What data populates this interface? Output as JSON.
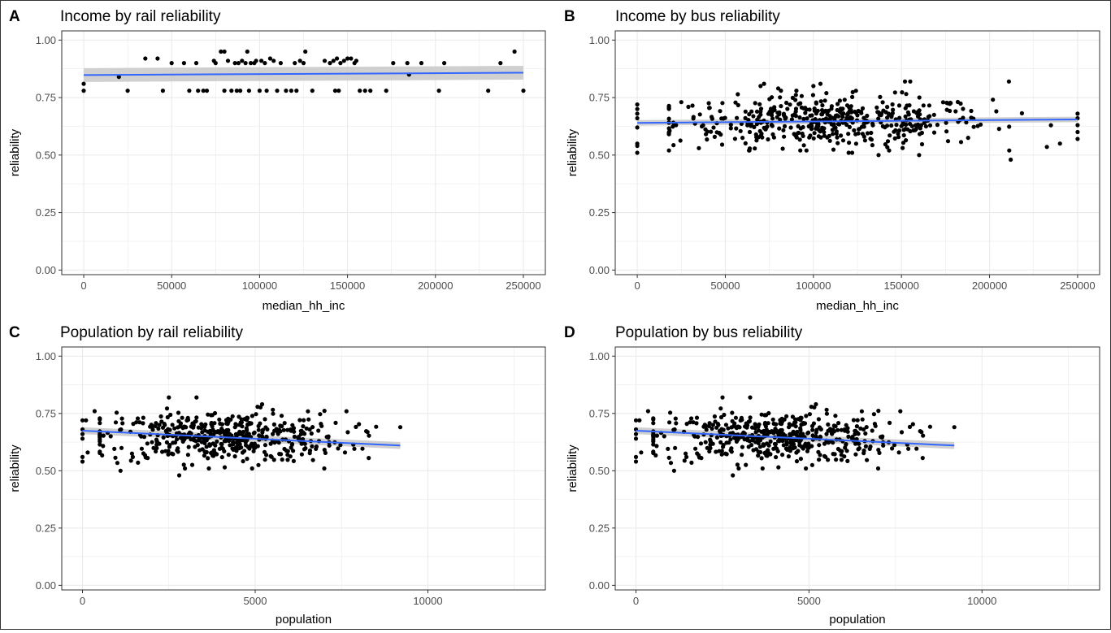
{
  "figure": {
    "colors": {
      "point": "#000000",
      "line": "#3366FF",
      "ribbon": "#C8C8C8",
      "grid": "#EBEBEB",
      "panel_border": "#333333"
    },
    "panels": [
      {
        "tag": "A",
        "title": "Income by rail reliability"
      },
      {
        "tag": "B",
        "title": "Income by bus reliability"
      },
      {
        "tag": "C",
        "title": "Population by rail reliability"
      },
      {
        "tag": "D",
        "title": "Population by bus reliability"
      }
    ]
  },
  "chart_data": [
    {
      "type": "scatter",
      "title": "Income by rail reliability",
      "xlabel": "median_hh_inc",
      "ylabel": "reliability",
      "xlim": [
        -12500,
        262500
      ],
      "ylim": [
        -0.02,
        1.04
      ],
      "x_ticks": [
        0,
        50000,
        100000,
        150000,
        200000,
        250000
      ],
      "x_tick_labels": [
        "0",
        "50000",
        "100000",
        "150000",
        "200000",
        "250000"
      ],
      "y_ticks": [
        0,
        0.25,
        0.5,
        0.75,
        1.0
      ],
      "y_tick_labels": [
        "0.00",
        "0.25",
        "0.50",
        "0.75",
        "1.00"
      ],
      "grid": true,
      "points": [
        [
          0,
          0.81
        ],
        [
          0,
          0.78
        ],
        [
          20000,
          0.84
        ],
        [
          25000,
          0.78
        ],
        [
          35000,
          0.92
        ],
        [
          42000,
          0.92
        ],
        [
          45000,
          0.78
        ],
        [
          50000,
          0.9
        ],
        [
          57000,
          0.9
        ],
        [
          60000,
          0.78
        ],
        [
          64000,
          0.9
        ],
        [
          65000,
          0.78
        ],
        [
          68000,
          0.78
        ],
        [
          70000,
          0.78
        ],
        [
          74000,
          0.91
        ],
        [
          75000,
          0.9
        ],
        [
          78000,
          0.95
        ],
        [
          80000,
          0.95
        ],
        [
          80000,
          0.78
        ],
        [
          82000,
          0.91
        ],
        [
          84000,
          0.78
        ],
        [
          86000,
          0.9
        ],
        [
          87000,
          0.78
        ],
        [
          88000,
          0.9
        ],
        [
          89000,
          0.78
        ],
        [
          90000,
          0.91
        ],
        [
          92000,
          0.9
        ],
        [
          93000,
          0.95
        ],
        [
          94000,
          0.78
        ],
        [
          95000,
          0.9
        ],
        [
          97000,
          0.9
        ],
        [
          98000,
          0.91
        ],
        [
          100000,
          0.78
        ],
        [
          101000,
          0.91
        ],
        [
          103000,
          0.9
        ],
        [
          104000,
          0.78
        ],
        [
          106000,
          0.92
        ],
        [
          108000,
          0.91
        ],
        [
          110000,
          0.78
        ],
        [
          112000,
          0.9
        ],
        [
          115000,
          0.78
        ],
        [
          118000,
          0.78
        ],
        [
          120000,
          0.9
        ],
        [
          121000,
          0.78
        ],
        [
          123000,
          0.91
        ],
        [
          125000,
          0.9
        ],
        [
          126000,
          0.95
        ],
        [
          130000,
          0.78
        ],
        [
          137000,
          0.91
        ],
        [
          140000,
          0.9
        ],
        [
          142000,
          0.91
        ],
        [
          143000,
          0.78
        ],
        [
          144000,
          0.92
        ],
        [
          145000,
          0.78
        ],
        [
          146000,
          0.9
        ],
        [
          148000,
          0.91
        ],
        [
          150000,
          0.92
        ],
        [
          152000,
          0.92
        ],
        [
          154000,
          0.9
        ],
        [
          155000,
          0.91
        ],
        [
          157000,
          0.78
        ],
        [
          160000,
          0.78
        ],
        [
          163000,
          0.78
        ],
        [
          172000,
          0.78
        ],
        [
          176000,
          0.9
        ],
        [
          184000,
          0.9
        ],
        [
          185000,
          0.85
        ],
        [
          192000,
          0.9
        ],
        [
          202000,
          0.78
        ],
        [
          205000,
          0.9
        ],
        [
          230000,
          0.78
        ],
        [
          237000,
          0.9
        ],
        [
          245000,
          0.95
        ],
        [
          250000,
          0.78
        ]
      ],
      "fit": {
        "x": [
          0,
          250000
        ],
        "y": [
          0.848,
          0.858
        ],
        "band": 0.03
      }
    },
    {
      "type": "scatter",
      "title": "Income by bus reliability",
      "xlabel": "median_hh_inc",
      "ylabel": "reliability",
      "xlim": [
        -12500,
        262500
      ],
      "ylim": [
        -0.02,
        1.04
      ],
      "x_ticks": [
        0,
        50000,
        100000,
        150000,
        200000,
        250000
      ],
      "x_tick_labels": [
        "0",
        "50000",
        "100000",
        "150000",
        "200000",
        "250000"
      ],
      "y_ticks": [
        0,
        0.25,
        0.5,
        0.75,
        1.0
      ],
      "y_tick_labels": [
        "0.00",
        "0.25",
        "0.50",
        "0.75",
        "1.00"
      ],
      "grid": true,
      "points": [
        [
          0,
          0.51
        ],
        [
          0,
          0.54
        ],
        [
          0,
          0.55
        ],
        [
          0,
          0.62
        ],
        [
          0,
          0.66
        ],
        [
          0,
          0.68
        ],
        [
          0,
          0.7
        ],
        [
          0,
          0.72
        ],
        [
          250000,
          0.57
        ],
        [
          250000,
          0.6
        ],
        [
          250000,
          0.63
        ],
        [
          250000,
          0.66
        ],
        [
          250000,
          0.68
        ],
        [
          212000,
          0.48
        ],
        [
          211000,
          0.82
        ],
        [
          155000,
          0.82
        ],
        [
          152000,
          0.82
        ],
        [
          104000,
          0.81
        ],
        [
          80000,
          0.79
        ],
        [
          70000,
          0.8
        ],
        [
          72000,
          0.81
        ],
        [
          100000,
          0.8
        ],
        [
          137000,
          0.5
        ],
        [
          143000,
          0.52
        ],
        [
          160000,
          0.5
        ],
        [
          120000,
          0.51
        ],
        [
          122000,
          0.51
        ],
        [
          35000,
          0.53
        ],
        [
          22000,
          0.63
        ],
        [
          25000,
          0.73
        ],
        [
          240000,
          0.55
        ]
      ],
      "points_note": "plus a dense cloud of several hundred points spanning x 20000–240000, y 0.50–0.80",
      "fit": {
        "x": [
          0,
          250000
        ],
        "y": [
          0.64,
          0.655
        ],
        "band": 0.012
      }
    },
    {
      "type": "scatter",
      "title": "Population by rail reliability",
      "xlabel": "population",
      "ylabel": "reliability",
      "xlim": [
        -600,
        13400
      ],
      "ylim": [
        -0.02,
        1.04
      ],
      "x_ticks": [
        0,
        5000,
        10000
      ],
      "x_tick_labels": [
        "0",
        "5000",
        "10000"
      ],
      "y_ticks": [
        0,
        0.25,
        0.5,
        0.75,
        1.0
      ],
      "y_tick_labels": [
        "0.00",
        "0.25",
        "0.50",
        "0.75",
        "1.00"
      ],
      "grid": true,
      "points": [
        [
          0,
          0.54
        ],
        [
          0,
          0.56
        ],
        [
          0,
          0.64
        ],
        [
          0,
          0.66
        ],
        [
          0,
          0.68
        ],
        [
          0,
          0.72
        ],
        [
          100,
          0.72
        ],
        [
          150,
          0.58
        ],
        [
          350,
          0.76
        ],
        [
          1100,
          0.5
        ],
        [
          2500,
          0.82
        ],
        [
          2800,
          0.48
        ],
        [
          3300,
          0.82
        ],
        [
          5200,
          0.79
        ],
        [
          7000,
          0.51
        ],
        [
          7600,
          0.58
        ],
        [
          9200,
          0.69
        ]
      ],
      "points_note": "plus a dense cloud of several hundred points spanning x 500–8500, y 0.50–0.80",
      "fit": {
        "x": [
          0,
          9200
        ],
        "y": [
          0.675,
          0.61
        ],
        "band": 0.015
      }
    },
    {
      "type": "scatter",
      "title": "Population by bus reliability",
      "xlabel": "population",
      "ylabel": "reliability",
      "xlim": [
        -600,
        13400
      ],
      "ylim": [
        -0.02,
        1.04
      ],
      "x_ticks": [
        0,
        5000,
        10000
      ],
      "x_tick_labels": [
        "0",
        "5000",
        "10000"
      ],
      "y_ticks": [
        0,
        0.25,
        0.5,
        0.75,
        1.0
      ],
      "y_tick_labels": [
        "0.00",
        "0.25",
        "0.50",
        "0.75",
        "1.00"
      ],
      "grid": true,
      "points": [
        [
          0,
          0.54
        ],
        [
          0,
          0.56
        ],
        [
          0,
          0.64
        ],
        [
          0,
          0.66
        ],
        [
          0,
          0.68
        ],
        [
          0,
          0.72
        ],
        [
          100,
          0.72
        ],
        [
          150,
          0.58
        ],
        [
          350,
          0.76
        ],
        [
          1100,
          0.5
        ],
        [
          2500,
          0.82
        ],
        [
          2800,
          0.48
        ],
        [
          3300,
          0.82
        ],
        [
          5200,
          0.79
        ],
        [
          7000,
          0.51
        ],
        [
          7600,
          0.58
        ],
        [
          9200,
          0.69
        ]
      ],
      "points_note": "plus a dense cloud of several hundred points spanning x 500–8500, y 0.50–0.80",
      "fit": {
        "x": [
          0,
          9200
        ],
        "y": [
          0.675,
          0.61
        ],
        "band": 0.015
      }
    }
  ]
}
